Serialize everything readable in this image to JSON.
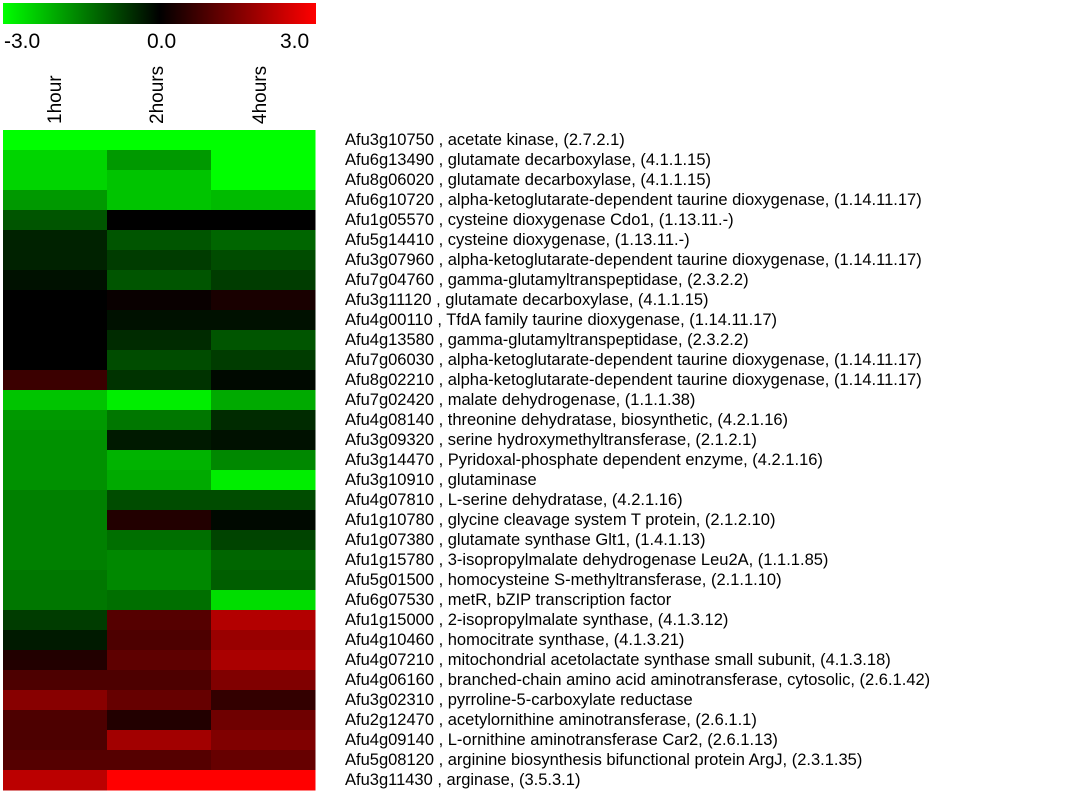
{
  "chart_data": {
    "type": "heatmap",
    "color_scale": {
      "min": -3.0,
      "mid": 0.0,
      "max": 3.0,
      "min_label": "-3.0",
      "mid_label": "0.0",
      "max_label": "3.0",
      "low_color": "#00ff00",
      "mid_color": "#000000",
      "high_color": "#ff0000"
    },
    "columns": [
      "1hour",
      "2hours",
      "4hours"
    ],
    "rows": [
      {
        "label": "Afu3g10750 , acetate kinase, (2.7.2.1)",
        "values": [
          -3.0,
          -3.0,
          -3.0
        ]
      },
      {
        "label": "Afu6g13490 , glutamate decarboxylase, (4.1.1.15)",
        "values": [
          -2.5,
          -1.8,
          -3.0
        ]
      },
      {
        "label": "Afu8g06020 , glutamate decarboxylase, (4.1.1.15)",
        "values": [
          -2.5,
          -2.3,
          -3.0
        ]
      },
      {
        "label": "Afu6g10720 , alpha-ketoglutarate-dependent taurine dioxygenase, (1.14.11.17)",
        "values": [
          -1.8,
          -2.3,
          -2.2
        ]
      },
      {
        "label": "Afu1g05570 , cysteine dioxygenase Cdo1, (1.13.11.-)",
        "values": [
          -1.0,
          0.0,
          0.0
        ]
      },
      {
        "label": "Afu5g14410 , cysteine dioxygenase, (1.13.11.-)",
        "values": [
          -0.4,
          -1.0,
          -1.2
        ]
      },
      {
        "label": "Afu3g07960 , alpha-ketoglutarate-dependent taurine dioxygenase, (1.14.11.17)",
        "values": [
          -0.4,
          -0.7,
          -0.9
        ]
      },
      {
        "label": "Afu7g04760 , gamma-glutamyltranspeptidase, (2.3.2.2)",
        "values": [
          -0.2,
          -1.0,
          -0.7
        ]
      },
      {
        "label": "Afu3g11120 , glutamate decarboxylase, (4.1.1.15)",
        "values": [
          0.0,
          0.1,
          0.3
        ]
      },
      {
        "label": "Afu4g00110 , TfdA family taurine dioxygenase, (1.14.11.17)",
        "values": [
          0.0,
          -0.2,
          -0.2
        ]
      },
      {
        "label": "Afu4g13580 , gamma-glutamyltranspeptidase, (2.3.2.2)",
        "values": [
          0.0,
          -0.5,
          -1.0
        ]
      },
      {
        "label": "Afu7g06030 , alpha-ketoglutarate-dependent taurine dioxygenase, (1.14.11.17)",
        "values": [
          0.0,
          -0.9,
          -0.7
        ]
      },
      {
        "label": "Afu8g02210 , alpha-ketoglutarate-dependent taurine dioxygenase, (1.14.11.17)",
        "values": [
          0.7,
          -0.6,
          -0.1
        ]
      },
      {
        "label": "Afu7g02420 , malate dehydrogenase, (1.1.1.38)",
        "values": [
          -2.3,
          -2.8,
          -2.0
        ]
      },
      {
        "label": "Afu4g08140 , threonine dehydratase, biosynthetic, (4.2.1.16)",
        "values": [
          -1.8,
          -1.4,
          -0.5
        ]
      },
      {
        "label": "Afu3g09320 , serine hydroxymethyltransferase, (2.1.2.1)",
        "values": [
          -1.7,
          -0.3,
          -0.2
        ]
      },
      {
        "label": "Afu3g14470 , Pyridoxal-phosphate dependent enzyme, (4.2.1.16)",
        "values": [
          -1.7,
          -2.1,
          -1.6
        ]
      },
      {
        "label": "Afu3g10910 , glutaminase",
        "values": [
          -1.7,
          -2.0,
          -2.8
        ]
      },
      {
        "label": "Afu4g07810 , L-serine dehydratase, (4.2.1.16)",
        "values": [
          -1.5,
          -0.9,
          -0.9
        ]
      },
      {
        "label": "Afu1g10780 , glycine cleavage system T protein, (2.1.2.10)",
        "values": [
          -1.5,
          0.4,
          -0.1
        ]
      },
      {
        "label": "Afu1g07380 , glutamate synthase Glt1, (1.4.1.13)",
        "values": [
          -1.5,
          -1.3,
          -0.8
        ]
      },
      {
        "label": "Afu1g15780 , 3-isopropylmalate dehydrogenase Leu2A, (1.1.1.85)",
        "values": [
          -1.5,
          -1.6,
          -1.2
        ]
      },
      {
        "label": "Afu5g01500 , homocysteine S-methyltransferase, (2.1.1.10)",
        "values": [
          -1.4,
          -1.6,
          -1.1
        ]
      },
      {
        "label": "Afu6g07530 , metR, bZIP transcription factor",
        "values": [
          -1.4,
          -1.3,
          -2.6
        ]
      },
      {
        "label": "Afu1g15000 , 2-isopropylmalate synthase, (4.1.3.12)",
        "values": [
          -0.7,
          1.0,
          2.1
        ]
      },
      {
        "label": "Afu4g10460 , homocitrate synthase, (4.1.3.21)",
        "values": [
          -0.3,
          0.9,
          1.8
        ]
      },
      {
        "label": "Afu4g07210 , mitochondrial acetolactate synthase small subunit, (4.1.3.18)",
        "values": [
          0.4,
          1.1,
          2.0
        ]
      },
      {
        "label": "Afu4g06160 , branched-chain amino acid aminotransferase, cytosolic, (2.6.1.42)",
        "values": [
          0.9,
          0.9,
          1.5
        ]
      },
      {
        "label": "Afu3g02310 , pyrroline-5-carboxylate reductase",
        "values": [
          1.6,
          1.2,
          0.6
        ]
      },
      {
        "label": "Afu2g12470 , acetylornithine aminotransferase, (2.6.1.1)",
        "values": [
          0.9,
          0.4,
          1.3
        ]
      },
      {
        "label": "Afu4g09140 , L-ornithine aminotransferase Car2, (2.6.1.13)",
        "values": [
          0.9,
          1.9,
          1.5
        ]
      },
      {
        "label": "Afu5g08120 , arginine biosynthesis bifunctional protein ArgJ, (2.3.1.35)",
        "values": [
          1.0,
          1.0,
          1.2
        ]
      },
      {
        "label": "Afu3g11430 , arginase, (3.5.3.1)",
        "values": [
          2.2,
          3.0,
          3.0
        ]
      }
    ]
  }
}
